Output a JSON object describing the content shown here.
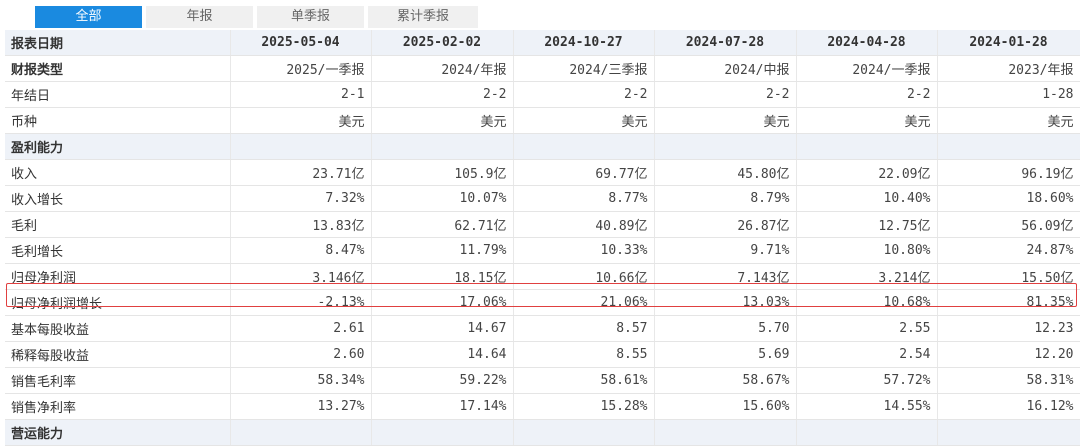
{
  "tabs": [
    "全部",
    "年报",
    "单季报",
    "累计季报"
  ],
  "header": {
    "label": "报表日期",
    "dates": [
      "2025-05-04",
      "2025-02-02",
      "2024-10-27",
      "2024-07-28",
      "2024-04-28",
      "2024-01-28"
    ]
  },
  "rows": [
    {
      "label": "财报类型",
      "values": [
        "2025/一季报",
        "2024/年报",
        "2024/三季报",
        "2024/中报",
        "2024/一季报",
        "2023/年报"
      ]
    },
    {
      "label": "年结日",
      "values": [
        "2-1",
        "2-2",
        "2-2",
        "2-2",
        "2-2",
        "1-28"
      ]
    },
    {
      "label": "币种",
      "values": [
        "美元",
        "美元",
        "美元",
        "美元",
        "美元",
        "美元"
      ]
    }
  ],
  "section1": {
    "title": "盈利能力",
    "rows": [
      {
        "label": "收入",
        "values": [
          "23.71亿",
          "105.9亿",
          "69.77亿",
          "45.80亿",
          "22.09亿",
          "96.19亿"
        ]
      },
      {
        "label": "收入增长",
        "values": [
          "7.32%",
          "10.07%",
          "8.77%",
          "8.79%",
          "10.40%",
          "18.60%"
        ]
      },
      {
        "label": "毛利",
        "values": [
          "13.83亿",
          "62.71亿",
          "40.89亿",
          "26.87亿",
          "12.75亿",
          "56.09亿"
        ]
      },
      {
        "label": "毛利增长",
        "values": [
          "8.47%",
          "11.79%",
          "10.33%",
          "9.71%",
          "10.80%",
          "24.87%"
        ]
      },
      {
        "label": "归母净利润",
        "values": [
          "3.146亿",
          "18.15亿",
          "10.66亿",
          "7.143亿",
          "3.214亿",
          "15.50亿"
        ]
      },
      {
        "label": "归母净利润增长",
        "values": [
          "-2.13%",
          "17.06%",
          "21.06%",
          "13.03%",
          "10.68%",
          "81.35%"
        ]
      },
      {
        "label": "基本每股收益",
        "values": [
          "2.61",
          "14.67",
          "8.57",
          "5.70",
          "2.55",
          "12.23"
        ]
      },
      {
        "label": "稀释每股收益",
        "values": [
          "2.60",
          "14.64",
          "8.55",
          "5.69",
          "2.54",
          "12.20"
        ]
      },
      {
        "label": "销售毛利率",
        "values": [
          "58.34%",
          "59.22%",
          "58.61%",
          "58.67%",
          "57.72%",
          "58.31%"
        ]
      },
      {
        "label": "销售净利率",
        "values": [
          "13.27%",
          "17.14%",
          "15.28%",
          "15.60%",
          "14.55%",
          "16.12%"
        ]
      }
    ]
  },
  "section2": {
    "title": "营运能力"
  },
  "highlight_color": "#e04040",
  "accent_color": "#1a8ae0"
}
